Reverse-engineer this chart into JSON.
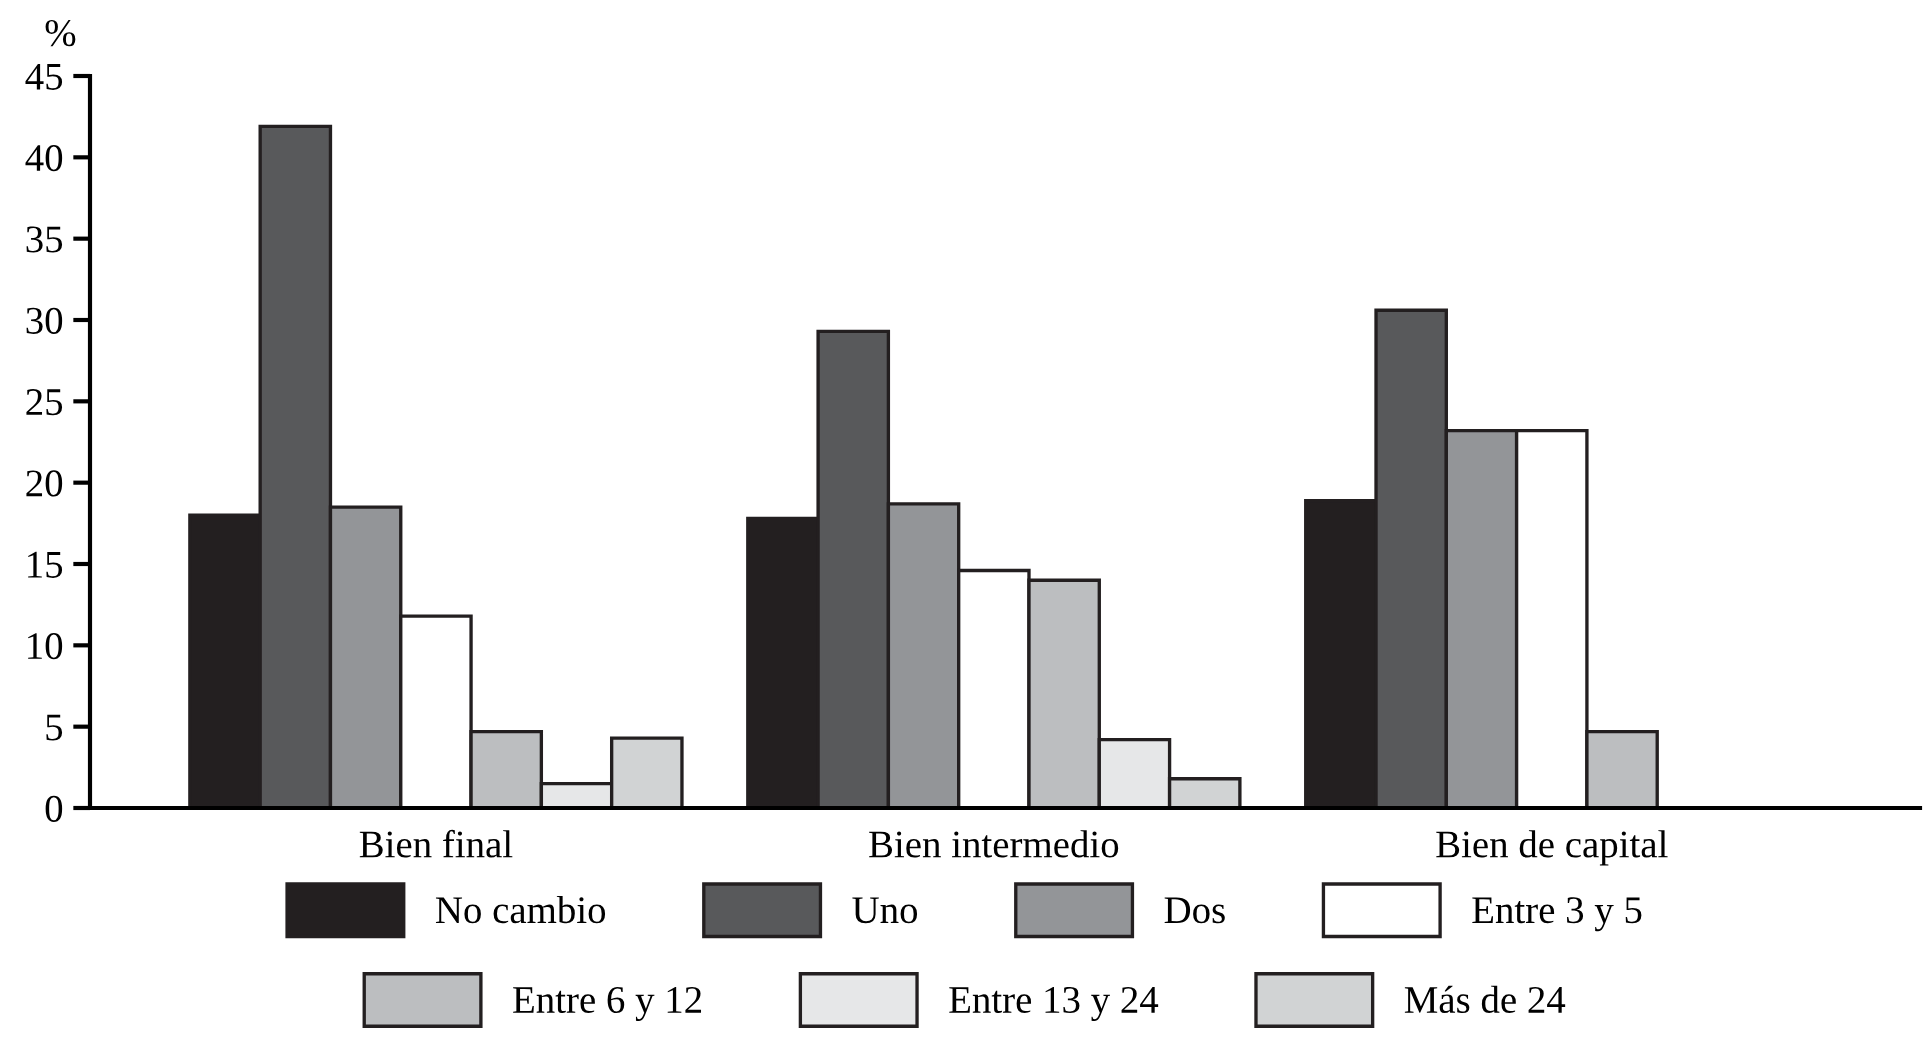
{
  "chart_data": {
    "type": "bar",
    "ylabel": "%",
    "categories": [
      "Bien final",
      "Bien intermedio",
      "Bien de capital"
    ],
    "series": [
      {
        "name": "No cambio",
        "color": "#231f20",
        "values": [
          18.0,
          17.8,
          18.9
        ]
      },
      {
        "name": "Uno",
        "color": "#58595b",
        "values": [
          41.9,
          29.3,
          30.6
        ]
      },
      {
        "name": "Dos",
        "color": "#939598",
        "values": [
          18.5,
          18.7,
          23.2
        ]
      },
      {
        "name": "Entre 3 y 5",
        "color": "#ffffff",
        "values": [
          11.8,
          14.6,
          23.2
        ]
      },
      {
        "name": "Entre 6 y 12",
        "color": "#bcbec0",
        "values": [
          4.7,
          14.0,
          4.7
        ]
      },
      {
        "name": "Entre 13 y 24",
        "color": "#e6e7e8",
        "values": [
          1.5,
          4.2,
          null
        ]
      },
      {
        "name": "Más de 24",
        "color": "#d1d3d4",
        "values": [
          4.3,
          1.8,
          null
        ]
      }
    ],
    "ylim": [
      0,
      45
    ],
    "yticks": [
      0,
      5,
      10,
      15,
      20,
      25,
      30,
      35,
      40,
      45
    ],
    "grid": false,
    "legend": "bottom"
  }
}
